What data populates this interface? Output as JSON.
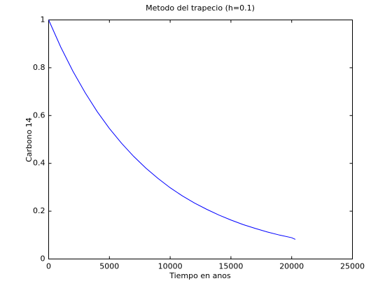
{
  "chart_data": {
    "type": "line",
    "title": "Metodo del trapecio (h=0.1)",
    "xlabel": "Tiempo en anos",
    "ylabel": "Carbono 14",
    "x": [
      0,
      1000,
      2000,
      3000,
      4000,
      5000,
      6000,
      7000,
      8000,
      9000,
      10000,
      11000,
      12000,
      13000,
      14000,
      15000,
      16000,
      17000,
      18000,
      19000,
      20000,
      20300
    ],
    "series": [
      {
        "name": "Carbono 14",
        "color": "#0000ff",
        "values": [
          1,
          0.886,
          0.785,
          0.696,
          0.616,
          0.546,
          0.484,
          0.429,
          0.38,
          0.337,
          0.298,
          0.264,
          0.234,
          0.208,
          0.184,
          0.163,
          0.144,
          0.128,
          0.113,
          0.1,
          0.089,
          0.082
        ]
      }
    ],
    "xlim": [
      0,
      25000
    ],
    "xticks": [
      0,
      5000,
      10000,
      15000,
      20000,
      25000
    ],
    "ylim": [
      0,
      1
    ],
    "yticks": [
      0,
      0.2,
      0.4,
      0.6,
      0.8,
      1
    ],
    "grid": false
  }
}
